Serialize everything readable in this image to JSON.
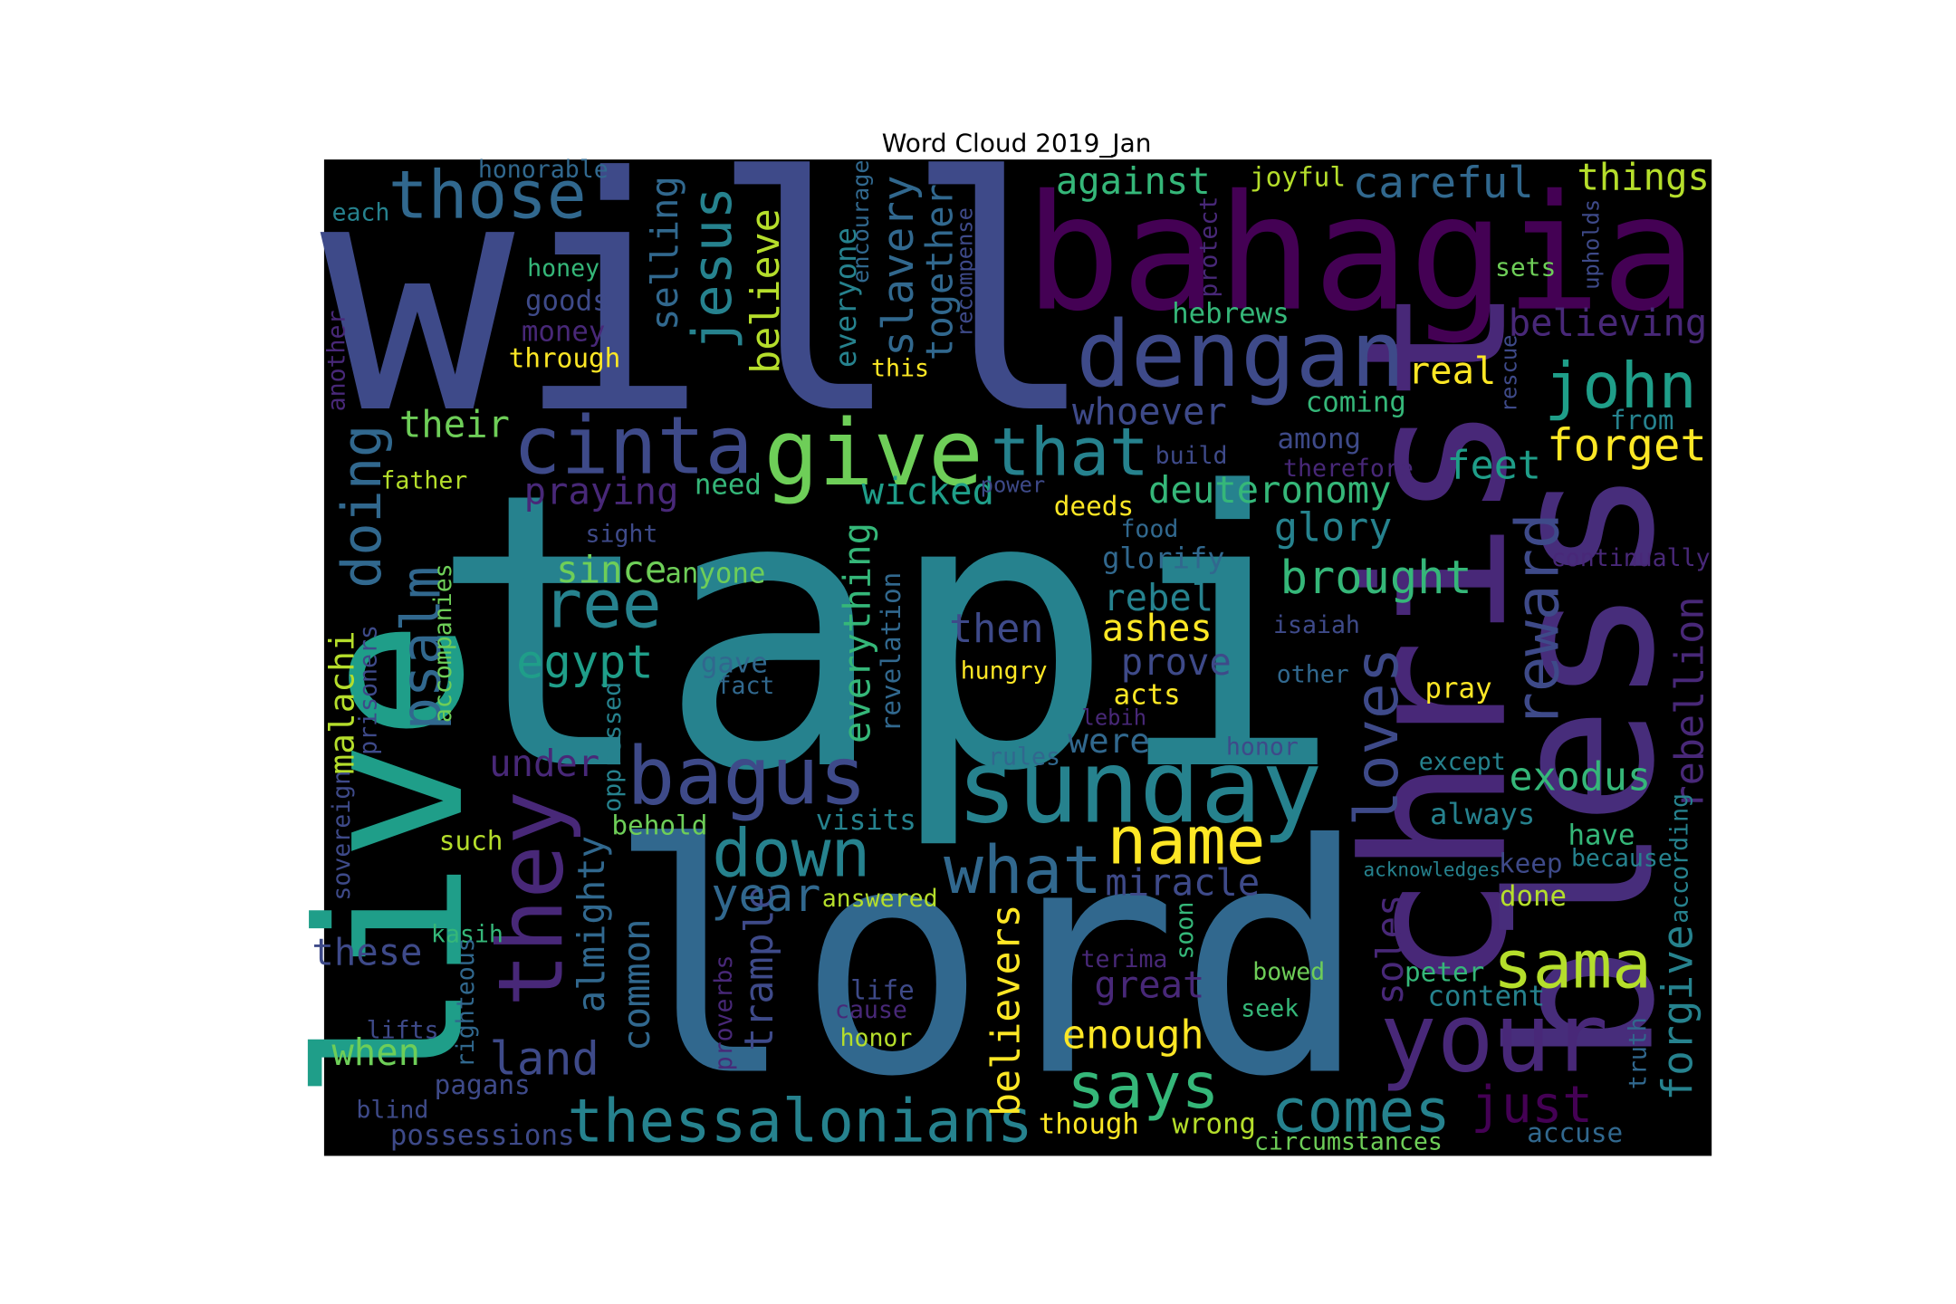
{
  "chart_data": {
    "type": "wordcloud",
    "title": "Word Cloud 2019_Jan",
    "background": "#000000",
    "words": [
      {
        "text": "will",
        "color": "#3e4a89"
      },
      {
        "text": "tapi",
        "color": "#26828e"
      },
      {
        "text": "lord",
        "color": "#31688e"
      },
      {
        "text": "bahagia",
        "color": "#440154"
      },
      {
        "text": "christ",
        "color": "#482878"
      },
      {
        "text": "bless",
        "color": "#472d7b"
      },
      {
        "text": "dengan",
        "color": "#3e4a89"
      },
      {
        "text": "live",
        "color": "#1f9e89"
      },
      {
        "text": "your",
        "color": "#482878"
      },
      {
        "text": "give",
        "color": "#6ece58"
      },
      {
        "text": "cinta",
        "color": "#3e4a89"
      },
      {
        "text": "that",
        "color": "#26828e"
      },
      {
        "text": "those",
        "color": "#31688e"
      },
      {
        "text": "sunday",
        "color": "#26828e"
      },
      {
        "text": "bagus",
        "color": "#3e4a89"
      },
      {
        "text": "name",
        "color": "#fde725"
      },
      {
        "text": "what",
        "color": "#31688e"
      },
      {
        "text": "down",
        "color": "#26828e"
      },
      {
        "text": "says",
        "color": "#35b779"
      },
      {
        "text": "thessalonians",
        "color": "#26828e"
      },
      {
        "text": "free",
        "color": "#26828e"
      },
      {
        "text": "they",
        "color": "#482878"
      },
      {
        "text": "john",
        "color": "#1f9e89"
      },
      {
        "text": "forget",
        "color": "#fde725"
      },
      {
        "text": "sama",
        "color": "#b5de2b"
      },
      {
        "text": "just",
        "color": "#440154"
      },
      {
        "text": "comes",
        "color": "#26828e"
      },
      {
        "text": "loves",
        "color": "#3e4a89"
      },
      {
        "text": "reward",
        "color": "#3e4a89"
      },
      {
        "text": "rebellion",
        "color": "#482878"
      },
      {
        "text": "forgive",
        "color": "#26828e"
      },
      {
        "text": "jesus",
        "color": "#26828e"
      },
      {
        "text": "selling",
        "color": "#31688e"
      },
      {
        "text": "believe",
        "color": "#b5de2b"
      },
      {
        "text": "slavery",
        "color": "#31688e"
      },
      {
        "text": "together",
        "color": "#31688e"
      },
      {
        "text": "everyone",
        "color": "#26828e"
      },
      {
        "text": "encourage",
        "color": "#31688e"
      },
      {
        "text": "recompense",
        "color": "#3e4a89"
      },
      {
        "text": "against",
        "color": "#35b779"
      },
      {
        "text": "careful",
        "color": "#31688e"
      },
      {
        "text": "joyful",
        "color": "#b5de2b"
      },
      {
        "text": "things",
        "color": "#b5de2b"
      },
      {
        "text": "protect",
        "color": "#482878"
      },
      {
        "text": "upholds",
        "color": "#3e4a89"
      },
      {
        "text": "sets",
        "color": "#6ece58"
      },
      {
        "text": "hebrews",
        "color": "#35b779"
      },
      {
        "text": "believing",
        "color": "#482878"
      },
      {
        "text": "real",
        "color": "#fde725"
      },
      {
        "text": "rescue",
        "color": "#3e4a89"
      },
      {
        "text": "coming",
        "color": "#35b779"
      },
      {
        "text": "from",
        "color": "#26828e"
      },
      {
        "text": "whoever",
        "color": "#3e4a89"
      },
      {
        "text": "among",
        "color": "#3e4a89"
      },
      {
        "text": "therefore",
        "color": "#482878"
      },
      {
        "text": "feet",
        "color": "#1f9e89"
      },
      {
        "text": "build",
        "color": "#3e4a89"
      },
      {
        "text": "deuteronomy",
        "color": "#35b779"
      },
      {
        "text": "glory",
        "color": "#26828e"
      },
      {
        "text": "deeds",
        "color": "#fde725"
      },
      {
        "text": "food",
        "color": "#31688e"
      },
      {
        "text": "glorify",
        "color": "#31688e"
      },
      {
        "text": "brought",
        "color": "#35b779"
      },
      {
        "text": "continually",
        "color": "#482878"
      },
      {
        "text": "rebel",
        "color": "#26828e"
      },
      {
        "text": "ashes",
        "color": "#fde725"
      },
      {
        "text": "isaiah",
        "color": "#3e4a89"
      },
      {
        "text": "prove",
        "color": "#3e4a89"
      },
      {
        "text": "then",
        "color": "#3e4a89"
      },
      {
        "text": "hungry",
        "color": "#fde725"
      },
      {
        "text": "other",
        "color": "#31688e"
      },
      {
        "text": "pray",
        "color": "#fde725"
      },
      {
        "text": "acts",
        "color": "#fde725"
      },
      {
        "text": "lebih",
        "color": "#482878"
      },
      {
        "text": "were",
        "color": "#31688e"
      },
      {
        "text": "honor",
        "color": "#3e4a89"
      },
      {
        "text": "rules",
        "color": "#31688e"
      },
      {
        "text": "except",
        "color": "#26828e"
      },
      {
        "text": "exodus",
        "color": "#35b779"
      },
      {
        "text": "always",
        "color": "#26828e"
      },
      {
        "text": "have",
        "color": "#35b779"
      },
      {
        "text": "according",
        "color": "#26828e"
      },
      {
        "text": "because",
        "color": "#26828e"
      },
      {
        "text": "acknowledges",
        "color": "#26828e"
      },
      {
        "text": "keep",
        "color": "#3e4a89"
      },
      {
        "text": "done",
        "color": "#b5de2b"
      },
      {
        "text": "miracle",
        "color": "#3e4a89"
      },
      {
        "text": "soon",
        "color": "#35b779"
      },
      {
        "text": "soles",
        "color": "#482878"
      },
      {
        "text": "terima",
        "color": "#482878"
      },
      {
        "text": "great",
        "color": "#482878"
      },
      {
        "text": "bowed",
        "color": "#6ece58"
      },
      {
        "text": "peter",
        "color": "#35b779"
      },
      {
        "text": "content",
        "color": "#26828e"
      },
      {
        "text": "seek",
        "color": "#35b779"
      },
      {
        "text": "truth",
        "color": "#31688e"
      },
      {
        "text": "enough",
        "color": "#fde725"
      },
      {
        "text": "though",
        "color": "#fde725"
      },
      {
        "text": "wrong",
        "color": "#b5de2b"
      },
      {
        "text": "circumstances",
        "color": "#6ece58"
      },
      {
        "text": "accuse",
        "color": "#31688e"
      },
      {
        "text": "believers",
        "color": "#fde725"
      },
      {
        "text": "trample",
        "color": "#3e4a89"
      },
      {
        "text": "common",
        "color": "#31688e"
      },
      {
        "text": "almighty",
        "color": "#31688e"
      },
      {
        "text": "year",
        "color": "#31688e"
      },
      {
        "text": "answered",
        "color": "#b5de2b"
      },
      {
        "text": "behold",
        "color": "#6ece58"
      },
      {
        "text": "visits",
        "color": "#26828e"
      },
      {
        "text": "oppressed",
        "color": "#26828e"
      },
      {
        "text": "everything",
        "color": "#35b779"
      },
      {
        "text": "revelation",
        "color": "#31688e"
      },
      {
        "text": "gave",
        "color": "#31688e"
      },
      {
        "text": "fact",
        "color": "#31688e"
      },
      {
        "text": "anyone",
        "color": "#6ece58"
      },
      {
        "text": "since",
        "color": "#6ece58"
      },
      {
        "text": "egypt",
        "color": "#1f9e89"
      },
      {
        "text": "psalm",
        "color": "#31688e"
      },
      {
        "text": "doing",
        "color": "#31688e"
      },
      {
        "text": "malachi",
        "color": "#b5de2b"
      },
      {
        "text": "prisoners",
        "color": "#3e4a89"
      },
      {
        "text": "accompanies",
        "color": "#6ece58"
      },
      {
        "text": "sovereign",
        "color": "#3e4a89"
      },
      {
        "text": "under",
        "color": "#482878"
      },
      {
        "text": "such",
        "color": "#b5de2b"
      },
      {
        "text": "these",
        "color": "#3e4a89"
      },
      {
        "text": "kasih",
        "color": "#35b779"
      },
      {
        "text": "righteous",
        "color": "#31688e"
      },
      {
        "text": "lifts",
        "color": "#3e4a89"
      },
      {
        "text": "when",
        "color": "#6ece58"
      },
      {
        "text": "land",
        "color": "#3e4a89"
      },
      {
        "text": "pagans",
        "color": "#3e4a89"
      },
      {
        "text": "blind",
        "color": "#3e4a89"
      },
      {
        "text": "possessions",
        "color": "#3e4a89"
      },
      {
        "text": "proverbs",
        "color": "#482878"
      },
      {
        "text": "life",
        "color": "#3e4a89"
      },
      {
        "text": "cause",
        "color": "#482878"
      },
      {
        "text": "honor",
        "color": "#b5de2b"
      },
      {
        "text": "praying",
        "color": "#482878"
      },
      {
        "text": "need",
        "color": "#35b779"
      },
      {
        "text": "wicked",
        "color": "#1f9e89"
      },
      {
        "text": "power",
        "color": "#3e4a89"
      },
      {
        "text": "sight",
        "color": "#3e4a89"
      },
      {
        "text": "father",
        "color": "#b5de2b"
      },
      {
        "text": "their",
        "color": "#6ece58"
      },
      {
        "text": "through",
        "color": "#fde725"
      },
      {
        "text": "this",
        "color": "#fde725"
      },
      {
        "text": "money",
        "color": "#482878"
      },
      {
        "text": "goods",
        "color": "#3e4a89"
      },
      {
        "text": "honey",
        "color": "#35b779"
      },
      {
        "text": "honorable",
        "color": "#31688e"
      },
      {
        "text": "each",
        "color": "#26828e"
      },
      {
        "text": "another",
        "color": "#482878"
      }
    ]
  }
}
